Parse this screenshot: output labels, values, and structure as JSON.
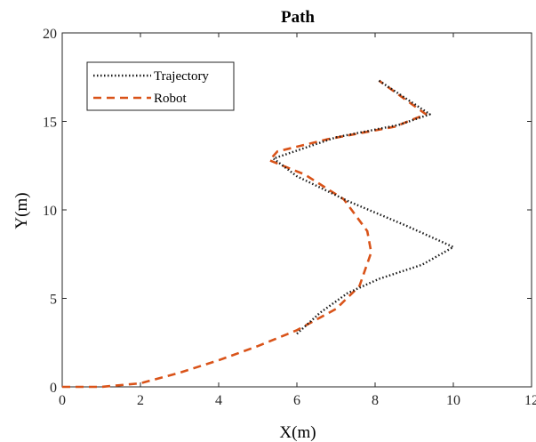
{
  "chart_data": {
    "type": "line",
    "title": "Path",
    "xlabel": "X(m)",
    "ylabel": "Y(m)",
    "xlim": [
      0,
      12
    ],
    "ylim": [
      0,
      20
    ],
    "xticks": [
      0,
      2,
      4,
      6,
      8,
      10,
      12
    ],
    "yticks": [
      0,
      5,
      10,
      15,
      20
    ],
    "grid": false,
    "legend_position": "top-left",
    "series": [
      {
        "name": "Trajectory",
        "color": "#1a1a1a",
        "style": "dotted",
        "x": [
          6.0,
          6.6,
          7.3,
          8.1,
          9.2,
          10.0,
          8.8,
          7.3,
          6.0,
          5.4,
          7.0,
          8.6,
          9.4,
          8.1
        ],
        "y": [
          3.0,
          4.2,
          5.3,
          6.1,
          6.9,
          7.9,
          9.1,
          10.5,
          11.9,
          12.9,
          14.1,
          14.8,
          15.4,
          17.3
        ]
      },
      {
        "name": "Robot",
        "color": "#d95319",
        "style": "dashed",
        "x": [
          0.0,
          1.0,
          2.0,
          3.0,
          4.0,
          5.0,
          6.0,
          7.0,
          7.6,
          7.9,
          7.8,
          7.2,
          6.2,
          5.3,
          5.5,
          6.8,
          8.5,
          9.3,
          8.1
        ],
        "y": [
          0.0,
          0.0,
          0.2,
          0.8,
          1.5,
          2.3,
          3.2,
          4.4,
          5.7,
          7.6,
          8.8,
          10.6,
          12.0,
          12.8,
          13.3,
          14.0,
          14.7,
          15.4,
          17.3
        ]
      }
    ]
  }
}
